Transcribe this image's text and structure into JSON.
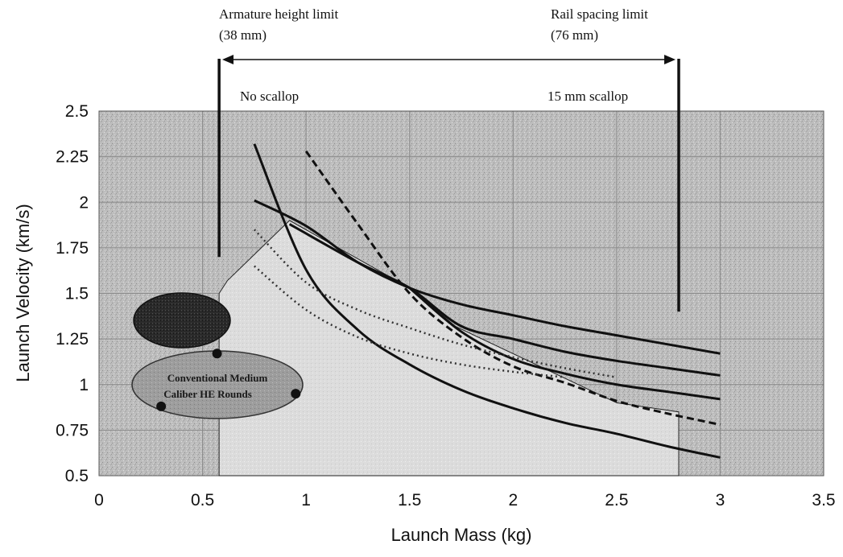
{
  "chart_data": {
    "type": "line",
    "xlabel": "Launch Mass (kg)",
    "ylabel": "Launch Velocity (km/s)",
    "xlim": [
      0,
      3.5
    ],
    "ylim": [
      0.5,
      2.5
    ],
    "xticks": [
      0,
      0.5,
      1,
      1.5,
      2,
      2.5,
      3,
      3.5
    ],
    "yticks": [
      0.5,
      0.75,
      1,
      1.25,
      1.5,
      1.75,
      2,
      2.25,
      2.5
    ],
    "xtick_labels": [
      "0",
      "0.5",
      "1",
      "1.5",
      "2",
      "2.5",
      "3",
      "3.5"
    ],
    "ytick_labels": [
      "0.5",
      "0.75",
      "1",
      "1.25",
      "1.5",
      "1.75",
      "2",
      "2.25",
      "2.5"
    ],
    "grid": true,
    "annotations": {
      "armature_height_limit": "Armature height limit",
      "armature_height_value": "(38 mm)",
      "rail_spacing_limit": "Rail spacing limit",
      "rail_spacing_value": "(76 mm)",
      "no_scallop": "No scallop",
      "scallop_15mm": "15 mm scallop",
      "ellipse_label_line1": "Conventional Medium",
      "ellipse_label_line2": "Caliber HE Rounds"
    },
    "limit_lines": [
      {
        "x": 0.58,
        "y_top": 1.7
      },
      {
        "x": 2.8,
        "y_top": 1.4
      }
    ],
    "series": [
      {
        "style": "solid",
        "x": [
          0.75,
          1.0,
          1.25,
          1.5,
          1.75,
          2.0,
          2.25,
          2.5,
          2.75,
          3.0
        ],
        "values": [
          2.01,
          1.87,
          1.67,
          1.53,
          1.44,
          1.38,
          1.32,
          1.27,
          1.22,
          1.17
        ]
      },
      {
        "style": "solid",
        "x": [
          0.75,
          1.0,
          1.25,
          1.5,
          1.75,
          2.0,
          2.25,
          2.5,
          2.75,
          3.0
        ],
        "values": [
          2.32,
          1.63,
          1.3,
          1.11,
          0.97,
          0.87,
          0.79,
          0.73,
          0.66,
          0.6
        ]
      },
      {
        "style": "solid",
        "x": [
          0.92,
          1.25,
          1.5,
          1.75,
          2.0,
          2.25,
          2.5,
          2.75,
          3.0
        ],
        "values": [
          1.88,
          1.67,
          1.53,
          1.32,
          1.25,
          1.18,
          1.13,
          1.09,
          1.05
        ]
      },
      {
        "style": "solid",
        "x": [
          1.5,
          1.75,
          2.0,
          2.25,
          2.5,
          2.75,
          3.0
        ],
        "values": [
          1.53,
          1.29,
          1.14,
          1.06,
          1.0,
          0.96,
          0.92
        ]
      },
      {
        "style": "dashed",
        "x": [
          1.0,
          1.25,
          1.5,
          1.75,
          2.0,
          2.25,
          2.5,
          2.75,
          3.0
        ],
        "values": [
          2.28,
          1.88,
          1.5,
          1.26,
          1.1,
          1.01,
          0.91,
          0.84,
          0.78
        ]
      },
      {
        "style": "dotted",
        "x": [
          0.75,
          1.0,
          1.25,
          1.5,
          1.75,
          2.0,
          2.25,
          2.5
        ],
        "values": [
          1.85,
          1.56,
          1.41,
          1.31,
          1.22,
          1.15,
          1.09,
          1.04
        ]
      },
      {
        "style": "dotted",
        "x": [
          0.75,
          1.0,
          1.25,
          1.5,
          1.75,
          2.0,
          2.25
        ],
        "values": [
          1.65,
          1.41,
          1.26,
          1.17,
          1.11,
          1.07,
          1.04
        ]
      }
    ],
    "feasible_region": {
      "x": [
        0.58,
        0.58,
        0.62,
        0.92,
        1.5,
        1.72,
        2.5,
        2.8,
        2.8
      ],
      "values": [
        0.5,
        1.5,
        1.57,
        1.9,
        1.53,
        1.32,
        0.9,
        0.85,
        0.5
      ]
    },
    "rounds_points": [
      {
        "x": 0.3,
        "value": 0.88
      },
      {
        "x": 0.57,
        "value": 1.17
      },
      {
        "x": 0.95,
        "value": 0.95
      }
    ]
  }
}
